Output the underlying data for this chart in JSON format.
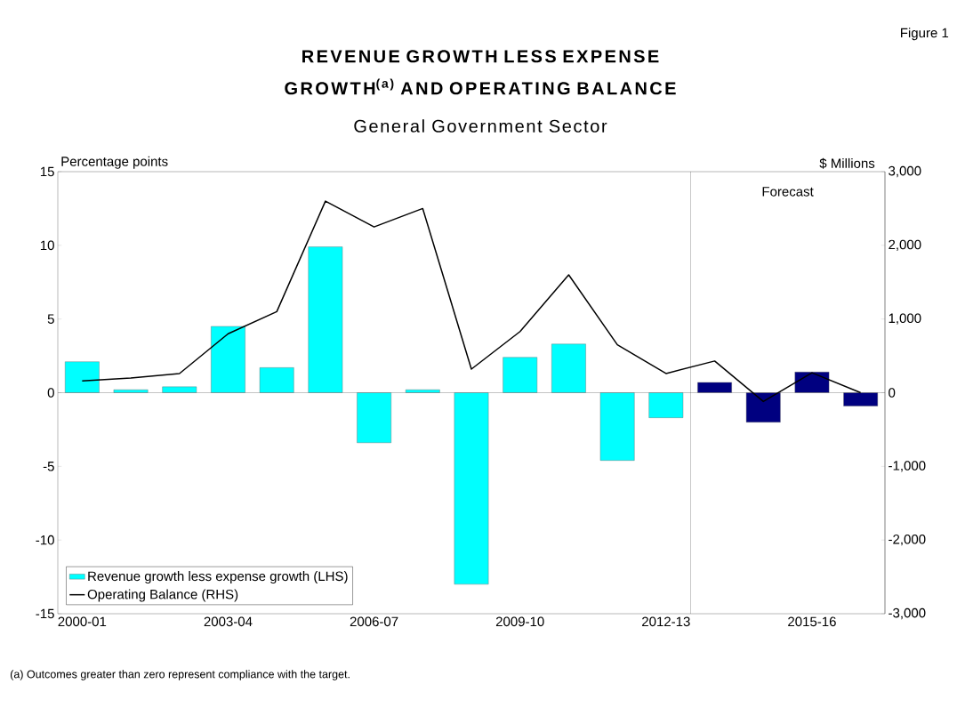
{
  "chart_data": {
    "type": "bar",
    "title": "REVENUE GROWTH LESS EXPENSE GROWTH$^{(a)}$ AND OPERATING BALANCE",
    "subtitle": "General Government Sector",
    "ylabel": "Percentage points",
    "y2label": "$ Millions",
    "annotations": [
      "Figure 1",
      "(a)  Outcomes greater than zero represent compliance with the target.",
      "Forecast"
    ],
    "categories": [
      "2000-01",
      null,
      null,
      "2003-04",
      null,
      null,
      "2006-07",
      null,
      null,
      "2009-10",
      null,
      null,
      "2012-13",
      null,
      null,
      "2015-16",
      null
    ],
    "series": [
      {
        "name": "Revenue growth less expense growth (LHS)",
        "colors": [
          "#00ffff",
          "#00ffff",
          "#00ffff",
          "#00ffff",
          "#00ffff",
          "#00ffff",
          "#00ffff",
          "#00ffff",
          "#00ffff",
          "#00ffff",
          "#00ffff",
          "#00ffff",
          "#00ffff",
          "#000080",
          "#000080",
          "#000080",
          "#000080"
        ],
        "values": [
          2.1,
          0.2,
          0.4,
          4.5,
          1.7,
          9.9,
          -3.4,
          0.2,
          -13.0,
          2.4,
          3.3,
          -4.6,
          -1.7,
          0.7,
          -2.0,
          1.4,
          -0.9
        ]
      },
      {
        "name": "Operating Balance (RHS)",
        "type": "line",
        "axis": "y2",
        "color": "#000000",
        "values": [
          160,
          200,
          260,
          800,
          1100,
          2600,
          2250,
          2500,
          320,
          830,
          1600,
          650,
          260,
          430,
          -120,
          270,
          0
        ]
      }
    ],
    "ylim": [
      -15,
      15
    ],
    "yticks": [
      -15,
      -10,
      -5,
      0,
      5,
      10,
      15
    ],
    "y2lim": [
      -3000,
      3000
    ],
    "y2ticks": [
      {
        "value": -3000,
        "label": "-3,000"
      },
      {
        "value": -2000,
        "label": "-2,000"
      },
      {
        "value": -1000,
        "label": "-1,000"
      },
      0,
      {
        "value": 1000,
        "label": "1,000"
      },
      {
        "value": 2000,
        "label": "2,000"
      },
      {
        "value": 3000,
        "label": "3,000"
      }
    ],
    "legend": "bottom left"
  }
}
